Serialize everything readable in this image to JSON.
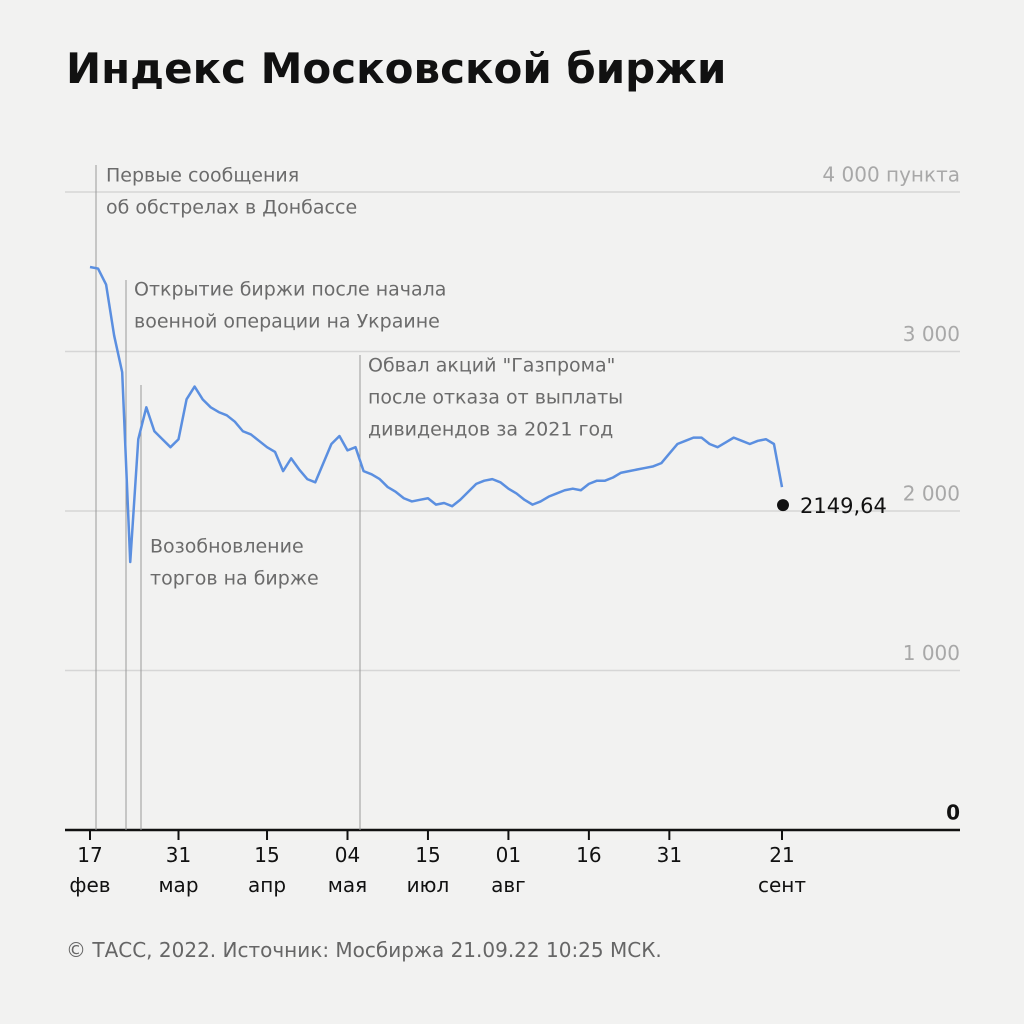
{
  "chart_data": {
    "type": "line",
    "title": "Индекс Московской биржи",
    "source": "© ТАСС, 2022. Источник: Мосбиржа 21.09.22 10:25 МСК.",
    "categories": [
      "17 фев",
      null,
      null,
      null,
      null,
      null,
      null,
      null,
      null,
      null,
      null,
      "31 мар",
      null,
      null,
      null,
      null,
      null,
      null,
      null,
      null,
      null,
      null,
      "15 апр",
      null,
      null,
      null,
      null,
      null,
      null,
      null,
      null,
      null,
      "04 мая",
      null,
      null,
      null,
      null,
      null,
      null,
      null,
      null,
      null,
      "15 июл",
      null,
      null,
      null,
      null,
      null,
      null,
      null,
      null,
      null,
      "01 авг",
      null,
      null,
      null,
      null,
      null,
      null,
      null,
      null,
      null,
      "16",
      null,
      null,
      null,
      null,
      null,
      null,
      null,
      null,
      null,
      "31",
      null,
      null,
      null,
      null,
      null,
      null,
      null,
      null,
      null,
      null,
      null,
      null,
      null,
      "21 сент"
    ],
    "series": [
      {
        "name": "Индекс МосБиржи",
        "color": "#5b8fe0",
        "values": [
          3530,
          3520,
          3420,
          3100,
          2870,
          1680,
          2450,
          2650,
          2500,
          2450,
          2400,
          2450,
          2700,
          2780,
          2700,
          2650,
          2620,
          2600,
          2560,
          2500,
          2480,
          2440,
          2400,
          2370,
          2250,
          2330,
          2260,
          2200,
          2180,
          2300,
          2420,
          2470,
          2380,
          2400,
          2250,
          2230,
          2200,
          2150,
          2120,
          2080,
          2060,
          2070,
          2080,
          2040,
          2050,
          2030,
          2070,
          2120,
          2170,
          2190,
          2200,
          2180,
          2140,
          2110,
          2070,
          2040,
          2060,
          2090,
          2110,
          2130,
          2140,
          2130,
          2170,
          2190,
          2190,
          2210,
          2240,
          2250,
          2260,
          2270,
          2280,
          2300,
          2360,
          2420,
          2440,
          2460,
          2460,
          2420,
          2400,
          2430,
          2460,
          2440,
          2420,
          2440,
          2450,
          2420,
          2149.64
        ]
      }
    ],
    "last_value_label": "2149,64",
    "ylim": [
      0,
      4000
    ],
    "yticks": [
      0,
      {
        "value": 1000,
        "label": "1 000"
      },
      {
        "value": 2000,
        "label": "2 000"
      },
      {
        "value": 3000,
        "label": "3 000"
      },
      {
        "value": 4000,
        "label": "4 000 пункта"
      }
    ],
    "grid": true,
    "annotations": [
      {
        "lines": [
          "Первые сообщения",
          "об обстрелах в Донбассе"
        ]
      },
      {
        "lines": [
          "Открытие биржи после начала",
          "военной операции на Украине"
        ]
      },
      {
        "lines": [
          "Возобновление",
          "торгов на бирже"
        ]
      },
      {
        "lines": [
          "Обвал акций \"Газпрома\"",
          "после отказа от выплаты",
          "дивидендов за 2021 год"
        ]
      }
    ]
  }
}
